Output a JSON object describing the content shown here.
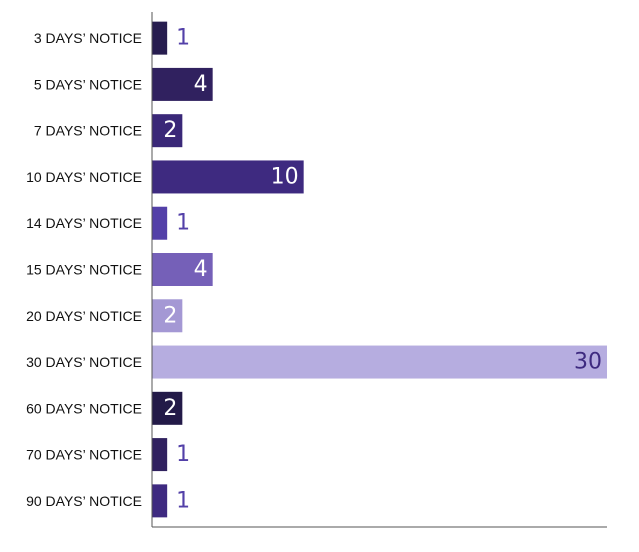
{
  "chart_data": {
    "type": "bar",
    "orientation": "horizontal",
    "categories": [
      "3 DAYS’ NOTICE",
      "5 DAYS’ NOTICE",
      "7 DAYS’ NOTICE",
      "10 DAYS’ NOTICE",
      "14 DAYS’ NOTICE",
      "15 DAYS’ NOTICE",
      "20 DAYS’ NOTICE",
      "30 DAYS’ NOTICE",
      "60 DAYS’ NOTICE",
      "70 DAYS’ NOTICE",
      "90 DAYS’ NOTICE"
    ],
    "values": [
      1,
      4,
      2,
      10,
      1,
      4,
      2,
      30,
      2,
      1,
      1
    ],
    "bar_colors": [
      "#271d4f",
      "#30215f",
      "#3a2878",
      "#3e2a80",
      "#5340a8",
      "#7560b8",
      "#a498d4",
      "#b6ade0",
      "#231a48",
      "#30215f",
      "#3e2a80"
    ],
    "label_colors": {
      "inside": "#ffffff",
      "inside_light_bar": "#3e2a80",
      "outside": "#5340a8"
    },
    "xlim": [
      0,
      30
    ],
    "grid": false,
    "legend": "none",
    "title": "",
    "xlabel": "",
    "ylabel": ""
  }
}
